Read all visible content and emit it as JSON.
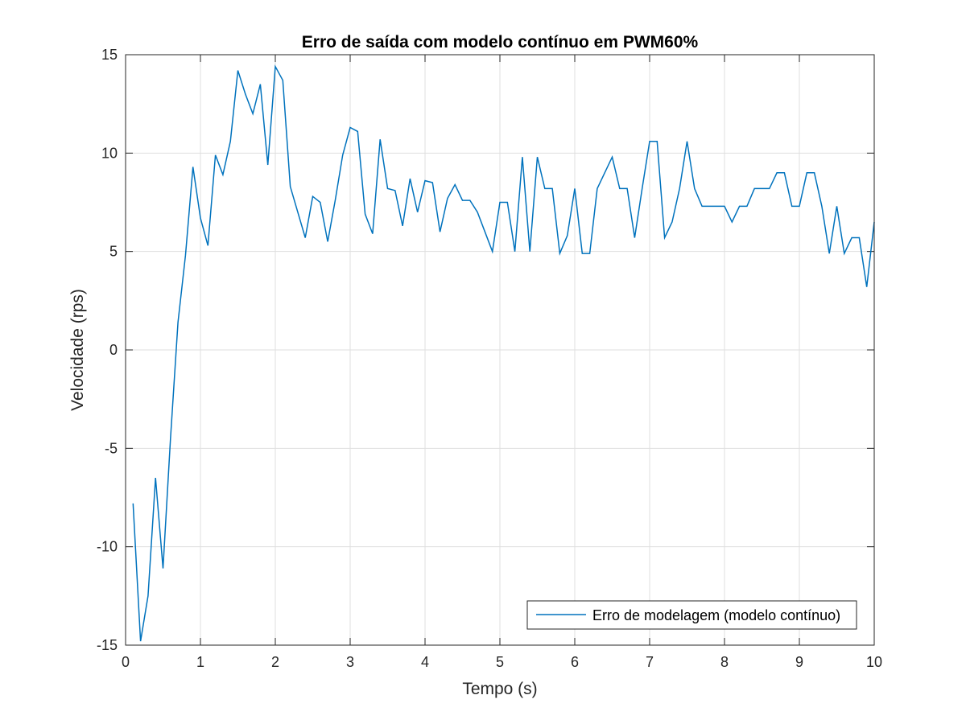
{
  "chart_data": {
    "type": "line",
    "title": "Erro de saída com modelo contínuo em PWM60%",
    "xlabel": "Tempo (s)",
    "ylabel": "Velocidade (rps)",
    "xlim": [
      0,
      10
    ],
    "ylim": [
      -15,
      15
    ],
    "xticks": [
      0,
      1,
      2,
      3,
      4,
      5,
      6,
      7,
      8,
      9,
      10
    ],
    "yticks": [
      -15,
      -10,
      -5,
      0,
      5,
      10,
      15
    ],
    "xtick_labels": [
      "0",
      "1",
      "2",
      "3",
      "4",
      "5",
      "6",
      "7",
      "8",
      "9",
      "10"
    ],
    "ytick_labels": [
      "-15",
      "-10",
      "-5",
      "0",
      "5",
      "10",
      "15"
    ],
    "grid": true,
    "legend_position": "bottom-right",
    "series": [
      {
        "name": "Erro de modelagem (modelo contínuo)",
        "color": "#0072bd",
        "x": [
          0.1,
          0.2,
          0.3,
          0.4,
          0.5,
          0.6,
          0.7,
          0.8,
          0.9,
          1.0,
          1.1,
          1.2,
          1.3,
          1.4,
          1.5,
          1.6,
          1.7,
          1.8,
          1.9,
          2.0,
          2.1,
          2.2,
          2.3,
          2.4,
          2.5,
          2.6,
          2.7,
          2.8,
          2.9,
          3.0,
          3.1,
          3.2,
          3.3,
          3.4,
          3.5,
          3.6,
          3.7,
          3.8,
          3.9,
          4.0,
          4.1,
          4.2,
          4.3,
          4.4,
          4.5,
          4.6,
          4.7,
          4.8,
          4.9,
          5.0,
          5.1,
          5.2,
          5.3,
          5.4,
          5.5,
          5.6,
          5.7,
          5.8,
          5.9,
          6.0,
          6.1,
          6.2,
          6.3,
          6.4,
          6.5,
          6.6,
          6.7,
          6.8,
          6.9,
          7.0,
          7.1,
          7.2,
          7.3,
          7.4,
          7.5,
          7.6,
          7.7,
          7.8,
          7.9,
          8.0,
          8.1,
          8.2,
          8.3,
          8.4,
          8.5,
          8.6,
          8.7,
          8.8,
          8.9,
          9.0,
          9.1,
          9.2,
          9.3,
          9.4,
          9.5,
          9.6,
          9.7,
          9.8,
          9.9,
          10.0
        ],
        "y": [
          -7.8,
          -14.8,
          -12.5,
          -6.5,
          -11.1,
          -4.5,
          1.4,
          4.8,
          9.3,
          6.7,
          5.3,
          9.9,
          8.9,
          10.6,
          14.2,
          13.0,
          12.0,
          13.5,
          9.4,
          14.4,
          13.7,
          8.3,
          7.0,
          5.7,
          7.8,
          7.5,
          5.5,
          7.6,
          9.9,
          11.3,
          11.1,
          6.9,
          5.9,
          10.7,
          8.2,
          8.1,
          6.3,
          8.7,
          7.0,
          8.6,
          8.5,
          6.0,
          7.7,
          8.4,
          7.6,
          7.6,
          7.0,
          6.0,
          5.0,
          7.5,
          7.5,
          5.0,
          9.8,
          5.0,
          9.8,
          8.2,
          8.2,
          4.9,
          5.8,
          8.2,
          4.9,
          4.9,
          8.2,
          9.0,
          9.8,
          8.2,
          8.2,
          5.7,
          8.2,
          10.6,
          10.6,
          5.7,
          6.5,
          8.2,
          10.6,
          8.2,
          7.3,
          7.3,
          7.3,
          7.3,
          6.5,
          7.3,
          7.3,
          8.2,
          8.2,
          8.2,
          9.0,
          9.0,
          7.3,
          7.3,
          9.0,
          9.0,
          7.3,
          4.9,
          7.3,
          4.9,
          5.7,
          5.7,
          3.2,
          6.5
        ]
      }
    ]
  }
}
